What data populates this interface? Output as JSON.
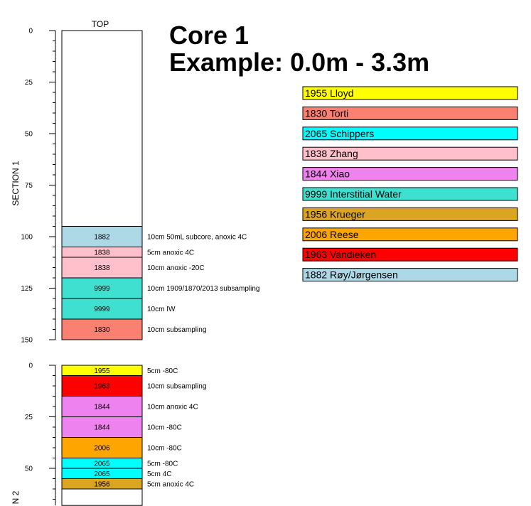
{
  "title": {
    "line1": "Core 1",
    "line2": "Example: 0.0m - 3.3m"
  },
  "top_label": "TOP",
  "legend": [
    {
      "label": "1955 Lloyd",
      "color": "#ffff00"
    },
    {
      "label": "1830 Torti",
      "color": "#fa8072"
    },
    {
      "label": "2065 Schippers",
      "color": "#00ffff"
    },
    {
      "label": "1838 Zhang",
      "color": "#ffc0cb"
    },
    {
      "label": "1844 Xiao",
      "color": "#ee82ee"
    },
    {
      "label": "9999 Interstitial Water",
      "color": "#40e0d0"
    },
    {
      "label": "1956 Krueger",
      "color": "#daa520"
    },
    {
      "label": "2006 Reese",
      "color": "#ffa500"
    },
    {
      "label": "1963 Vandieken",
      "color": "#ff0000"
    },
    {
      "label": "1882 Røy/Jørgensen",
      "color": "#add8e6"
    }
  ],
  "sections": [
    {
      "label": "SECTION 1",
      "depth_min": 0,
      "depth_max": 150,
      "ticks": [
        0,
        25,
        50,
        75,
        100,
        125,
        150
      ],
      "samples": [
        {
          "code": "1882",
          "top": 95,
          "bottom": 105,
          "color": "#add8e6",
          "desc": "10cm 50mL subcore, anoxic 4C"
        },
        {
          "code": "1838",
          "top": 105,
          "bottom": 110,
          "color": "#ffc0cb",
          "desc": "5cm anoxic 4C"
        },
        {
          "code": "1838",
          "top": 110,
          "bottom": 120,
          "color": "#ffc0cb",
          "desc": "10cm anoxic -20C"
        },
        {
          "code": "9999",
          "top": 120,
          "bottom": 130,
          "color": "#40e0d0",
          "desc": "10cm 1909/1870/2013 subsampling"
        },
        {
          "code": "9999",
          "top": 130,
          "bottom": 140,
          "color": "#40e0d0",
          "desc": "10cm IW"
        },
        {
          "code": "1830",
          "top": 140,
          "bottom": 150,
          "color": "#fa8072",
          "desc": "10cm subsampling"
        }
      ]
    },
    {
      "label": "N 2",
      "depth_min": 0,
      "depth_max": 68,
      "ticks": [
        0,
        25,
        50
      ],
      "samples": [
        {
          "code": "1955",
          "top": 0,
          "bottom": 5,
          "color": "#ffff00",
          "desc": "5cm -80C"
        },
        {
          "code": "1963",
          "top": 5,
          "bottom": 15,
          "color": "#ff0000",
          "desc": "10cm subsampling"
        },
        {
          "code": "1844",
          "top": 15,
          "bottom": 25,
          "color": "#ee82ee",
          "desc": "10cm anoxic 4C"
        },
        {
          "code": "1844",
          "top": 25,
          "bottom": 35,
          "color": "#ee82ee",
          "desc": "10cm -80C"
        },
        {
          "code": "2006",
          "top": 35,
          "bottom": 45,
          "color": "#ffa500",
          "desc": "10cm -80C"
        },
        {
          "code": "2065",
          "top": 45,
          "bottom": 50,
          "color": "#00ffff",
          "desc": "5cm -80C"
        },
        {
          "code": "2065",
          "top": 50,
          "bottom": 55,
          "color": "#00ffff",
          "desc": "5cm 4C"
        },
        {
          "code": "1956",
          "top": 55,
          "bottom": 60,
          "color": "#daa520",
          "desc": "5cm anoxic 4C"
        }
      ]
    }
  ]
}
